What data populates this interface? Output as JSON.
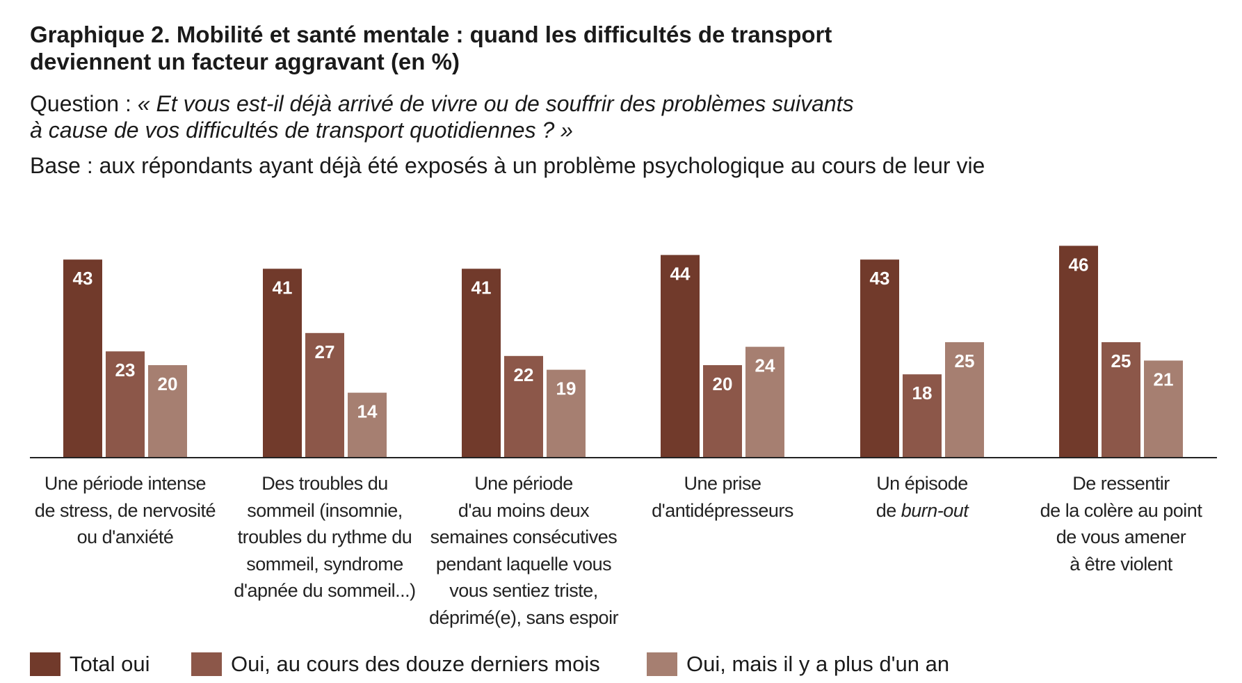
{
  "title": {
    "lead": "Graphique 2.",
    "rest_line1": " Mobilité et santé mentale : quand les difficultés de transport",
    "line2": "deviennent un facteur aggravant (en %)"
  },
  "question": {
    "label": "Question : ",
    "line1": "« Et vous est-il déjà arrivé de vivre ou de souffrir des problèmes suivants",
    "line2": "à cause de vos difficultés de transport quotidiennes ? »"
  },
  "base": "Base : aux répondants ayant déjà été exposés à un problème psychologique au cours de leur vie",
  "colors": {
    "series1": "#713a2b",
    "series2": "#8c5749",
    "series3": "#a67f71",
    "value_label": "#ffffff",
    "axis": "#222222"
  },
  "category_labels": [
    [
      "Une période intense",
      "de stress, de nervosité",
      "ou d'anxiété"
    ],
    [
      "Des troubles du",
      "sommeil (insomnie,",
      "troubles du rythme du",
      "sommeil, syndrome",
      "d'apnée du sommeil...)"
    ],
    [
      "Une période",
      "d'au moins deux",
      "semaines consécutives",
      "pendant laquelle vous",
      "vous sentiez triste,",
      "déprimé(e), sans espoir"
    ],
    [
      "Une prise",
      "d'antidépresseurs"
    ],
    [
      "Un épisode",
      "de burn-out"
    ],
    [
      "De ressentir",
      "de la colère au point",
      "de vous amener",
      "à être violent"
    ]
  ],
  "chart_data": {
    "type": "bar",
    "title": "Graphique 2. Mobilité et santé mentale : quand les difficultés de transport deviennent un facteur aggravant (en %)",
    "categories": [
      "Une période intense de stress, de nervosité ou d'anxiété",
      "Des troubles du sommeil (insomnie, troubles du rythme du sommeil, syndrome d'apnée du sommeil...)",
      "Une période d'au moins deux semaines consécutives pendant laquelle vous vous sentiez triste, déprimé(e), sans espoir",
      "Une prise d'antidépresseurs",
      "Un épisode de burn-out",
      "De ressentir de la colère au point de vous amener à être violent"
    ],
    "series": [
      {
        "name": "Total oui",
        "values": [
          43,
          41,
          41,
          44,
          43,
          46
        ]
      },
      {
        "name": "Oui, au cours des douze derniers mois",
        "values": [
          23,
          27,
          22,
          20,
          18,
          25
        ]
      },
      {
        "name": "Oui, mais il y a plus d'un an",
        "values": [
          20,
          14,
          19,
          24,
          25,
          21
        ]
      }
    ],
    "xlabel": "",
    "ylabel": "",
    "ylim": [
      0,
      46
    ],
    "grid": false,
    "legend_position": "bottom"
  },
  "legend": [
    {
      "label": "Total oui"
    },
    {
      "label": "Oui, au cours des douze derniers mois"
    },
    {
      "label": "Oui, mais il y a plus d'un an"
    }
  ]
}
